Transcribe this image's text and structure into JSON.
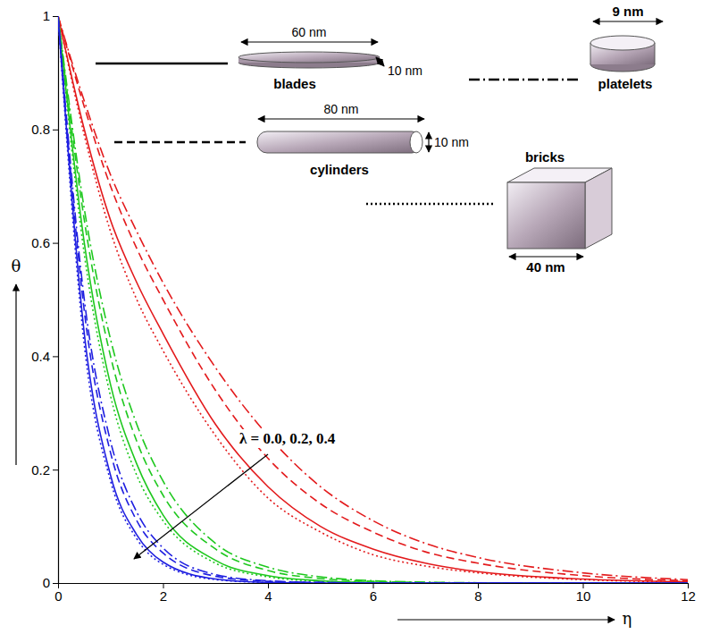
{
  "chart_data": {
    "type": "line",
    "xlabel": "η",
    "ylabel": "θ",
    "x": [
      0,
      0.5,
      1,
      1.5,
      2,
      3,
      4,
      5,
      6,
      7,
      8,
      10,
      12
    ],
    "xlim": [
      0,
      12
    ],
    "xticks": [
      0,
      2,
      4,
      6,
      8,
      10,
      12
    ],
    "ylim": [
      0,
      1
    ],
    "yticks": [
      0,
      0.2,
      0.4,
      0.6,
      0.8,
      1
    ],
    "grid": false,
    "series": [
      {
        "color": "#e31a1c",
        "line_style": "solid",
        "values": [
          1,
          0.8,
          0.64,
          0.53,
          0.44,
          0.28,
          0.17,
          0.1,
          0.06,
          0.035,
          0.02,
          0.007,
          0.002
        ]
      },
      {
        "color": "#e31a1c",
        "line_style": "dashed",
        "values": [
          1,
          0.84,
          0.7,
          0.59,
          0.5,
          0.34,
          0.22,
          0.14,
          0.09,
          0.055,
          0.035,
          0.013,
          0.004
        ]
      },
      {
        "color": "#e31a1c",
        "line_style": "dashdot",
        "values": [
          1,
          0.85,
          0.72,
          0.62,
          0.53,
          0.38,
          0.26,
          0.17,
          0.11,
          0.07,
          0.045,
          0.018,
          0.006
        ]
      },
      {
        "color": "#e31a1c",
        "line_style": "dotted",
        "values": [
          1,
          0.79,
          0.62,
          0.5,
          0.41,
          0.26,
          0.15,
          0.09,
          0.05,
          0.03,
          0.018,
          0.006,
          0.002
        ]
      },
      {
        "color": "#1fc81f",
        "line_style": "solid",
        "values": [
          1,
          0.6,
          0.35,
          0.21,
          0.12,
          0.04,
          0.013,
          0.004,
          0.001,
          0,
          0,
          0,
          0
        ]
      },
      {
        "color": "#1fc81f",
        "line_style": "dashed",
        "values": [
          1,
          0.64,
          0.4,
          0.25,
          0.155,
          0.06,
          0.022,
          0.008,
          0.003,
          0.001,
          0,
          0,
          0
        ]
      },
      {
        "color": "#1fc81f",
        "line_style": "dashdot",
        "values": [
          1,
          0.66,
          0.43,
          0.28,
          0.18,
          0.07,
          0.028,
          0.011,
          0.004,
          0.0015,
          0.0005,
          0,
          0
        ]
      },
      {
        "color": "#1fc81f",
        "line_style": "dotted",
        "values": [
          1,
          0.58,
          0.33,
          0.19,
          0.11,
          0.035,
          0.011,
          0.003,
          0.001,
          0,
          0,
          0,
          0
        ]
      },
      {
        "color": "#1f1fe0",
        "line_style": "solid",
        "values": [
          1,
          0.44,
          0.19,
          0.085,
          0.037,
          0.007,
          0.001,
          0,
          0,
          0,
          0,
          0,
          0
        ]
      },
      {
        "color": "#1f1fe0",
        "line_style": "dashed",
        "values": [
          1,
          0.48,
          0.23,
          0.11,
          0.053,
          0.012,
          0.003,
          0.001,
          0,
          0,
          0,
          0,
          0
        ]
      },
      {
        "color": "#1f1fe0",
        "line_style": "dashdot",
        "values": [
          1,
          0.5,
          0.25,
          0.125,
          0.062,
          0.015,
          0.004,
          0.001,
          0,
          0,
          0,
          0,
          0
        ]
      },
      {
        "color": "#1f1fe0",
        "line_style": "dotted",
        "values": [
          1,
          0.42,
          0.18,
          0.078,
          0.033,
          0.006,
          0.001,
          0,
          0,
          0,
          0,
          0,
          0
        ]
      }
    ],
    "shape_legend": [
      {
        "label": "blades",
        "line_style": "solid",
        "length_label": "60 nm",
        "thickness_label": "10 nm"
      },
      {
        "label": "cylinders",
        "line_style": "dashed",
        "length_label": "80 nm",
        "thickness_label": "10 nm"
      },
      {
        "label": "platelets",
        "line_style": "dashdot",
        "length_label": "9 nm"
      },
      {
        "label": "bricks",
        "line_style": "dotted",
        "length_label": "40 nm"
      }
    ],
    "annotations": [
      {
        "text": "λ = 0.0, 0.2, 0.4"
      }
    ]
  }
}
